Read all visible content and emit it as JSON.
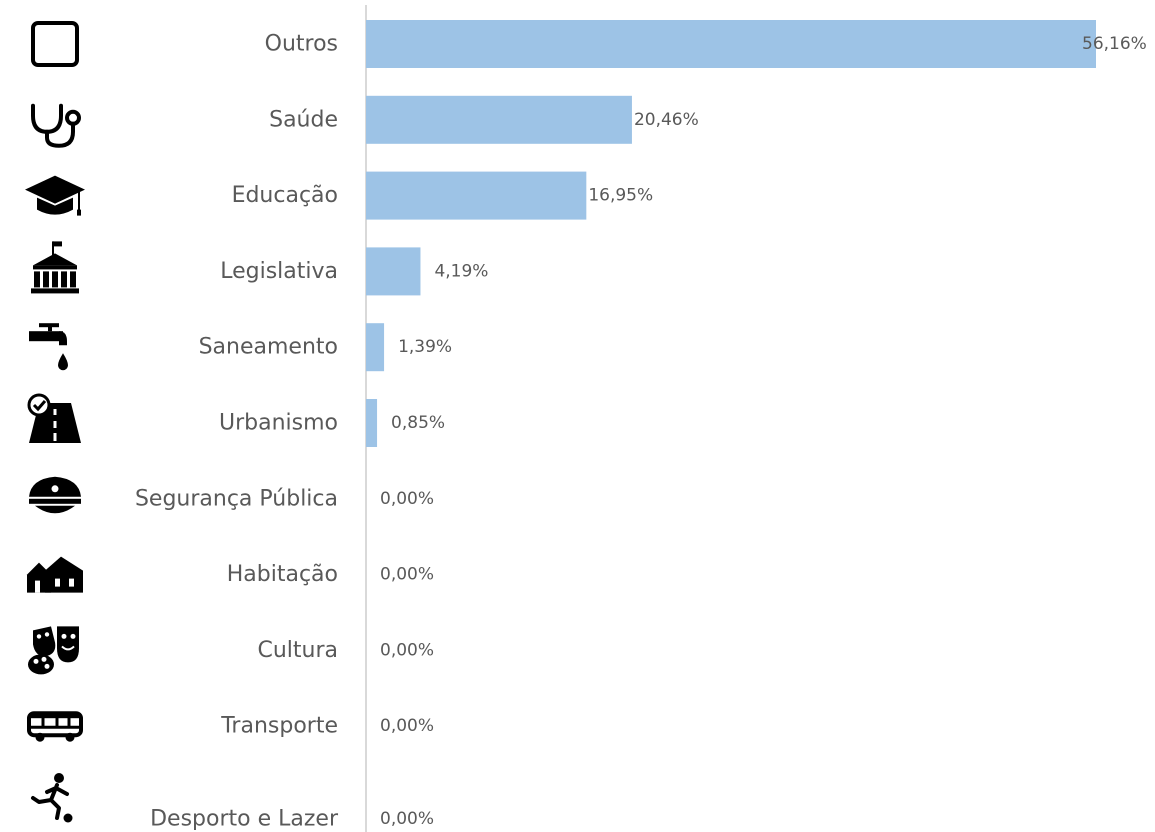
{
  "chart_data": {
    "type": "bar",
    "orientation": "horizontal",
    "categories": [
      "Outros",
      "Saúde",
      "Educação",
      "Legislativa",
      "Saneamento",
      "Urbanismo",
      "Segurança Pública",
      "Habitação",
      "Cultura",
      "Transporte",
      "Desporto e Lazer"
    ],
    "values": [
      56.16,
      20.46,
      16.95,
      4.19,
      1.39,
      0.85,
      0.0,
      0.0,
      0.0,
      0.0,
      0.0
    ],
    "value_labels": [
      "56,16%",
      "20,46%",
      "16,95%",
      "4,19%",
      "1,39%",
      "0,85%",
      "0,00%",
      "0,00%",
      "0,00%",
      "0,00%",
      "0,00%"
    ],
    "icons": [
      "square-outline-icon",
      "stethoscope-icon",
      "graduation-cap-icon",
      "government-building-icon",
      "water-tap-icon",
      "road-icon",
      "police-cap-icon",
      "houses-icon",
      "theater-masks-icon",
      "bus-icon",
      "soccer-player-icon"
    ],
    "xlim": [
      0,
      56.16
    ],
    "bar_color": "#9dc3e6",
    "label_color": "#595959",
    "axis_color": "#d9d9d9",
    "grid": false,
    "legend": "none"
  }
}
